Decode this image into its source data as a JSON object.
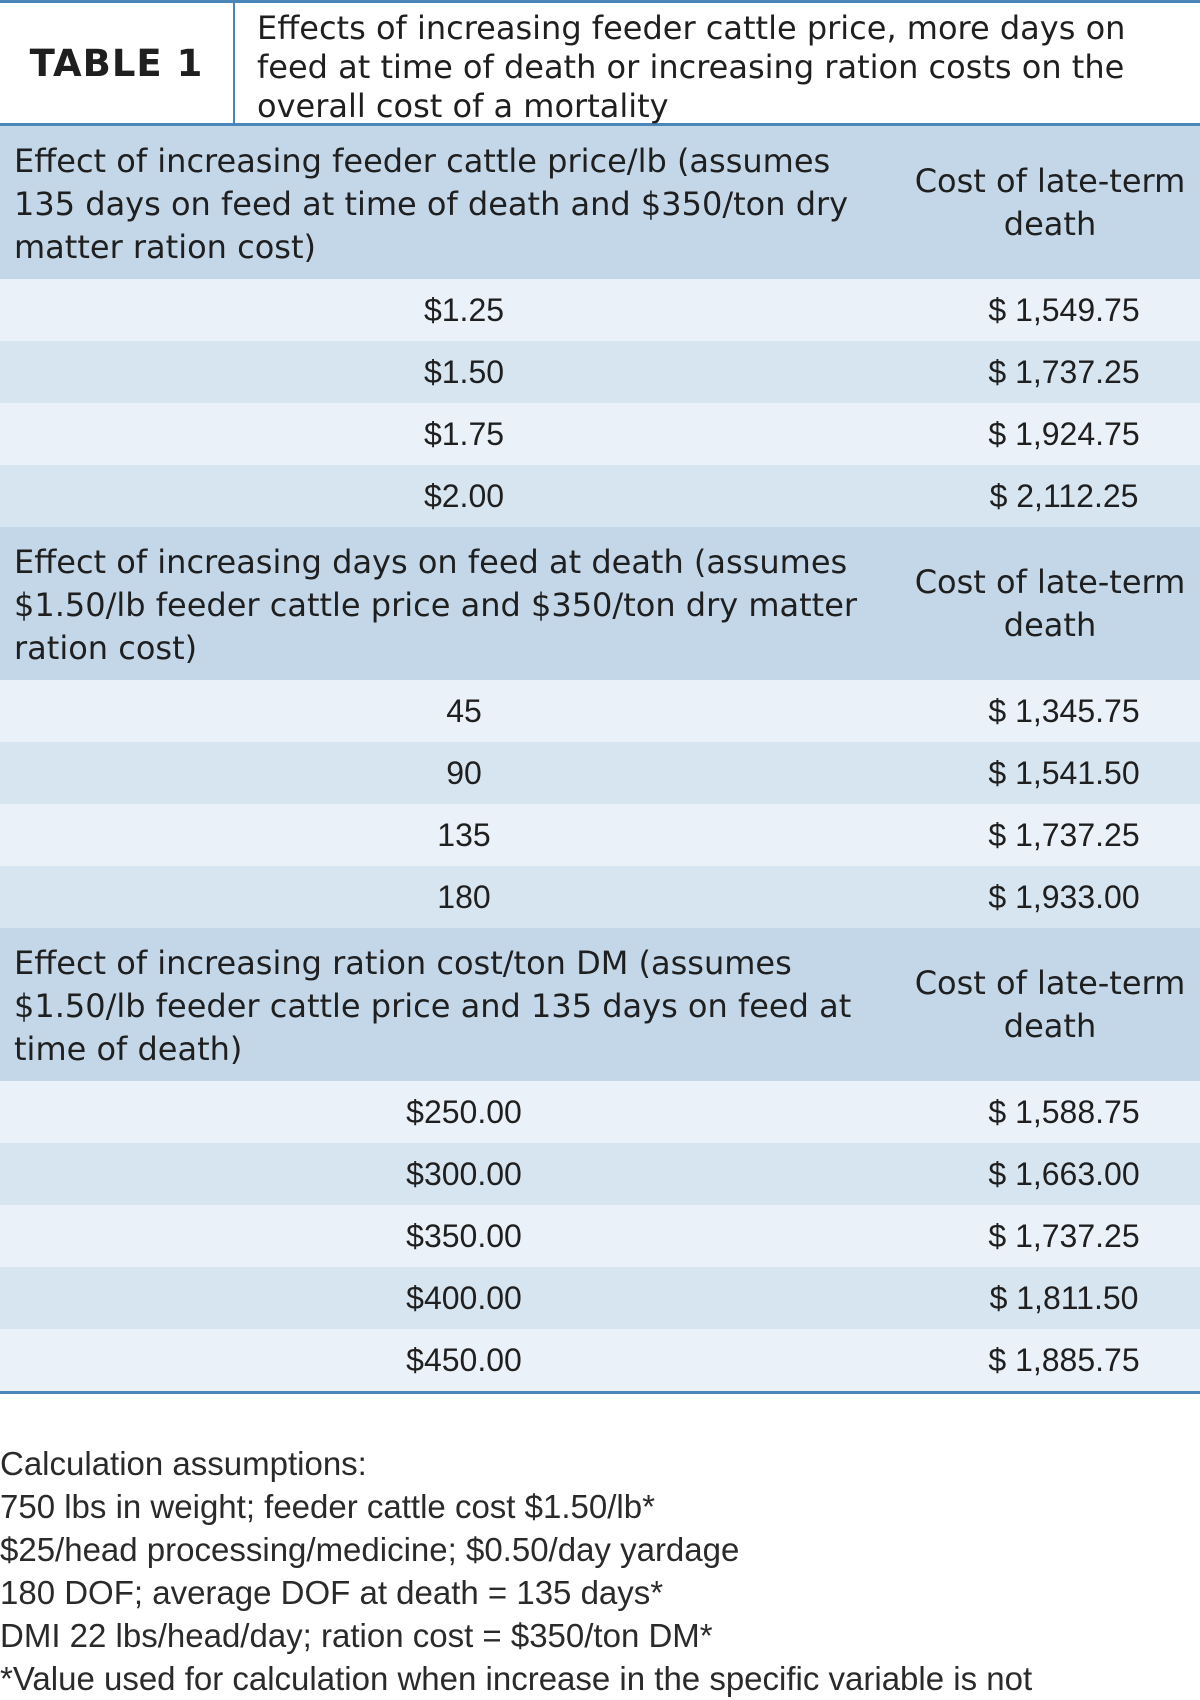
{
  "table": {
    "label": "TABLE 1",
    "title": "Effects of increasing feeder cattle price, more days on feed at time of death or increasing ration costs on the overall cost of a mortality",
    "sections": [
      {
        "heading": "Effect of increasing feeder cattle price/lb (assumes 135 days on feed at time of death and $350/ton dry matter ration cost)",
        "column_header": "Cost of late-term death",
        "rows": [
          {
            "value": "$1.25",
            "cost": "$ 1,549.75"
          },
          {
            "value": "$1.50",
            "cost": "$ 1,737.25"
          },
          {
            "value": "$1.75",
            "cost": "$ 1,924.75"
          },
          {
            "value": "$2.00",
            "cost": "$ 2,112.25"
          }
        ]
      },
      {
        "heading": "Effect of increasing days on feed at death (assumes $1.50/lb feeder cattle price and $350/ton dry matter ration cost)",
        "column_header": "Cost of late-term death",
        "rows": [
          {
            "value": "45",
            "cost": "$ 1,345.75"
          },
          {
            "value": "90",
            "cost": "$ 1,541.50"
          },
          {
            "value": "135",
            "cost": "$ 1,737.25"
          },
          {
            "value": "180",
            "cost": "$ 1,933.00"
          }
        ]
      },
      {
        "heading": "Effect of increasing ration cost/ton DM (assumes $1.50/lb feeder cattle price and 135 days on feed at time of death)",
        "column_header": "Cost of late-term death",
        "rows": [
          {
            "value": "$250.00",
            "cost": "$ 1,588.75"
          },
          {
            "value": "$300.00",
            "cost": "$ 1,663.00"
          },
          {
            "value": "$350.00",
            "cost": "$ 1,737.25"
          },
          {
            "value": "$400.00",
            "cost": "$ 1,811.50"
          },
          {
            "value": "$450.00",
            "cost": "$ 1,885.75"
          }
        ]
      }
    ]
  },
  "notes": {
    "heading": "Calculation assumptions:",
    "lines": [
      "750 lbs in weight; feeder cattle cost $1.50/lb*",
      "$25/head processing/medicine; $0.50/day yardage",
      "180 DOF; average DOF at death = 135 days*",
      "DMI 22 lbs/head/day; ration cost = $350/ton DM*",
      "*Value used for calculation when increase in the specific variable is not"
    ]
  },
  "colors": {
    "rule": "#4a86b8",
    "section_header_bg": "#c3d7e8",
    "row_light": "#eaf1f8",
    "row_mid": "#d7e5f1"
  }
}
